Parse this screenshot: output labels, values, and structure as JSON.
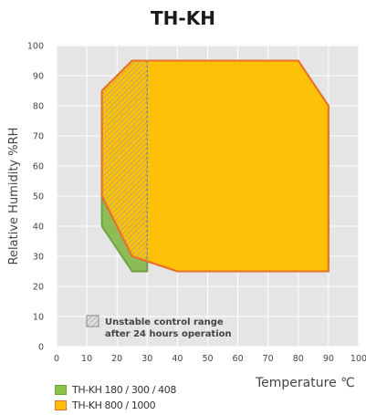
{
  "chart_data": {
    "type": "area",
    "title": "TH-KH",
    "xlabel": "Temperature ℃",
    "ylabel": "Relative Humidity %RH",
    "xlim": [
      0,
      100
    ],
    "ylim": [
      0,
      100
    ],
    "xticks": [
      0,
      10,
      20,
      30,
      40,
      50,
      60,
      70,
      80,
      90,
      100
    ],
    "yticks": [
      0,
      10,
      20,
      30,
      40,
      50,
      60,
      70,
      80,
      90,
      100
    ],
    "grid": true,
    "series": [
      {
        "name": "TH-KH 180 / 300 / 408",
        "fill": "#8bc34a",
        "stroke": "#6aa33a",
        "points": [
          [
            15,
            50
          ],
          [
            15,
            40
          ],
          [
            25,
            25
          ],
          [
            30,
            25
          ],
          [
            30,
            30
          ],
          [
            20,
            40
          ]
        ]
      },
      {
        "name": "TH-KH 800 / 1000",
        "fill": "#ffc107",
        "stroke": "#e8712a",
        "points": [
          [
            15,
            85
          ],
          [
            25,
            95
          ],
          [
            80,
            95
          ],
          [
            90,
            80
          ],
          [
            90,
            25
          ],
          [
            40,
            25
          ],
          [
            25,
            30
          ],
          [
            20,
            40
          ],
          [
            15,
            50
          ]
        ]
      }
    ],
    "unstable_region": {
      "label": "Unstable control range after 24 hours operation",
      "label_lines": [
        "Unstable control range",
        "after 24 hours operation"
      ],
      "points": [
        [
          15,
          85
        ],
        [
          25,
          95
        ],
        [
          30,
          95
        ],
        [
          30,
          25
        ],
        [
          25,
          25
        ],
        [
          15,
          40
        ]
      ]
    },
    "legend_position": "bottom-left"
  }
}
